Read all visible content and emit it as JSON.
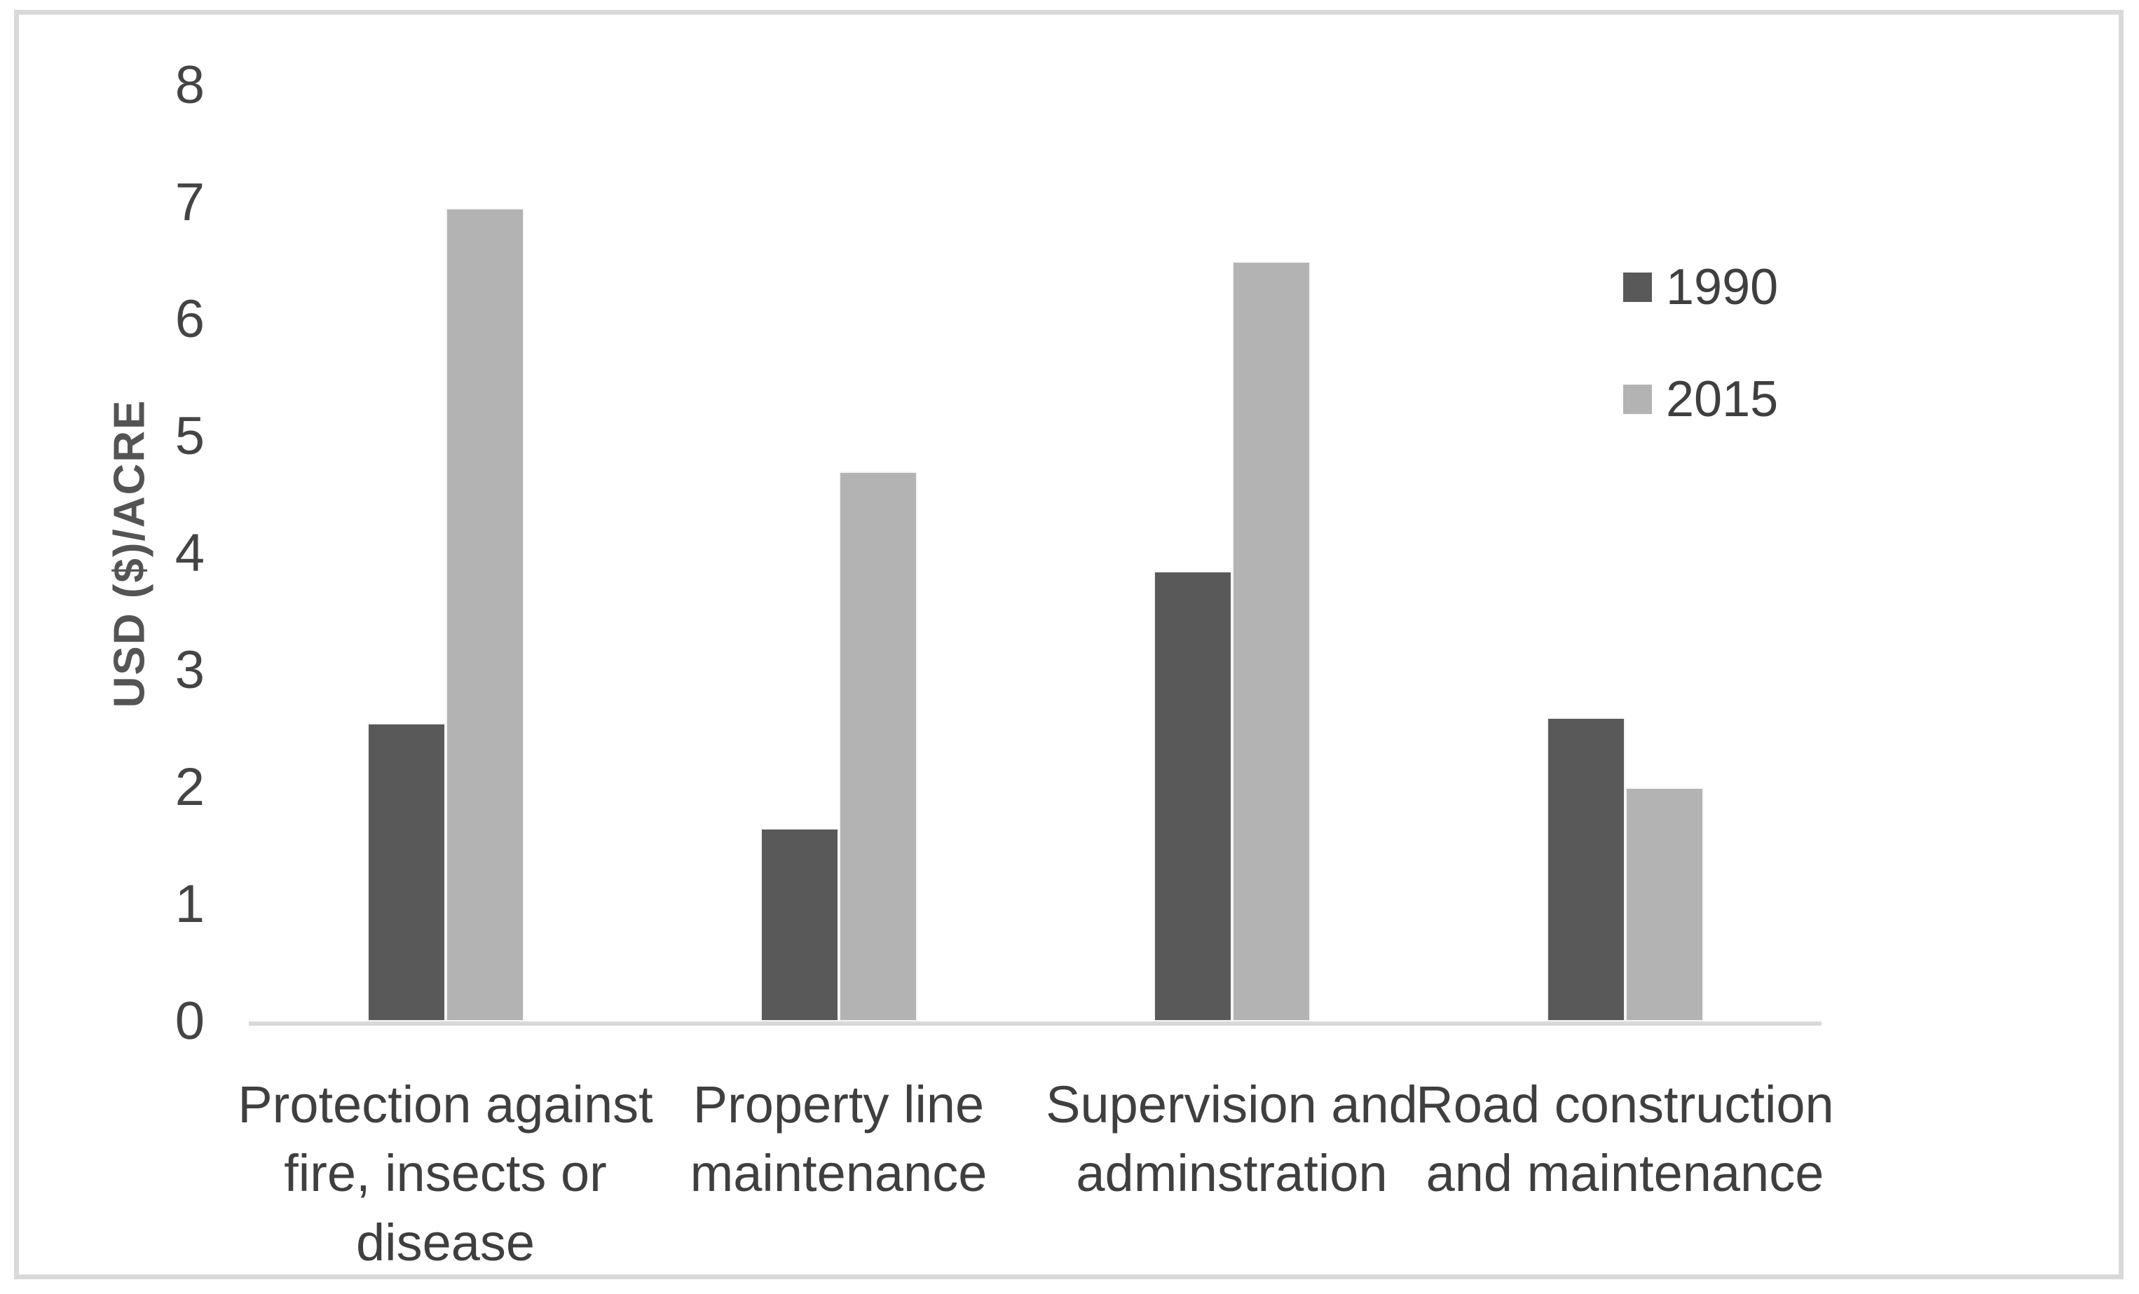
{
  "chart_data": {
    "type": "bar",
    "title": "",
    "xlabel": "",
    "ylabel": "USD ($)/ACRE",
    "ylim": [
      0,
      8
    ],
    "yticks": [
      0,
      1,
      2,
      3,
      4,
      5,
      6,
      7,
      8
    ],
    "grid": false,
    "legend_position": "upper-right",
    "categories": [
      "Protection against fire, insects or disease",
      "Property line maintenance",
      "Supervision and adminstration",
      "Road construction and maintenance"
    ],
    "category_lines": [
      [
        "Protection against",
        "fire, insects or",
        "disease"
      ],
      [
        "Property line",
        "maintenance"
      ],
      [
        "Supervision and",
        "adminstration"
      ],
      [
        "Road construction",
        "and maintenance"
      ]
    ],
    "series": [
      {
        "name": "1990",
        "color": "#595959",
        "values": [
          2.55,
          1.65,
          3.85,
          2.6
        ]
      },
      {
        "name": "2015",
        "color": "#b3b3b3",
        "values": [
          6.95,
          4.7,
          6.5,
          2.0
        ]
      }
    ]
  },
  "colors": {
    "frame_border": "#d9d9d9",
    "axis_line": "#d9d9d9",
    "tick_text": "#444444",
    "label_text": "#3f3f3f",
    "axis_title_text": "#545454",
    "background": "#ffffff"
  }
}
